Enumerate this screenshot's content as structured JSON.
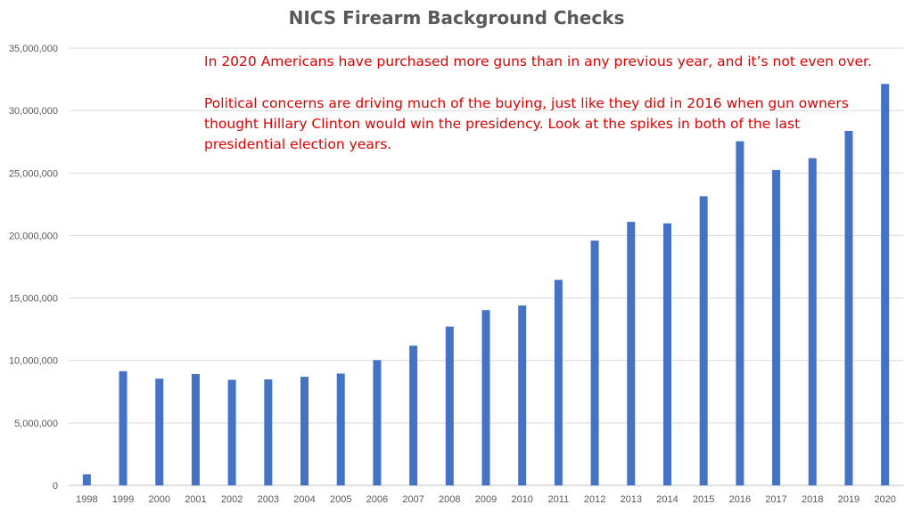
{
  "chart_data": {
    "type": "bar",
    "title": "NICS Firearm Background Checks",
    "xlabel": "",
    "ylabel": "",
    "ylim": [
      0,
      35000000
    ],
    "y_ticks": [
      "0",
      "5,000,000",
      "10,000,000",
      "15,000,000",
      "20,000,000",
      "25,000,000",
      "30,000,000",
      "35,000,000"
    ],
    "grid": true,
    "legend": "none",
    "bar_color": "#4472C4",
    "categories": [
      "1998",
      "1999",
      "2000",
      "2001",
      "2002",
      "2003",
      "2004",
      "2005",
      "2006",
      "2007",
      "2008",
      "2009",
      "2010",
      "2011",
      "2012",
      "2013",
      "2014",
      "2015",
      "2016",
      "2017",
      "2018",
      "2019",
      "2020"
    ],
    "values": [
      890000,
      9140000,
      8540000,
      8910000,
      8450000,
      8480000,
      8690000,
      8950000,
      10030000,
      11180000,
      12710000,
      14030000,
      14400000,
      16450000,
      19590000,
      21090000,
      20970000,
      23140000,
      27540000,
      25240000,
      26190000,
      28370000,
      32130000
    ],
    "annotations": {
      "color": "#e00000",
      "line1": "In 2020 Americans have purchased more guns than in any previous year, and it’s not even over.",
      "line2a": "Political concerns are driving much of the buying, just like they did in 2016 when gun owners",
      "line2b": "thought Hillary Clinton would win the presidency. Look at the spikes in both of the last",
      "line2c": "presidential election years."
    }
  }
}
